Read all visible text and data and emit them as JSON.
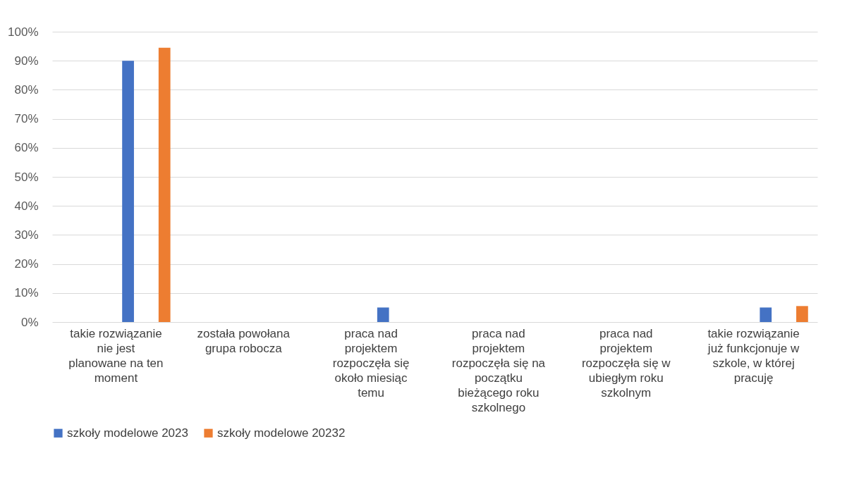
{
  "chart_data": {
    "type": "bar",
    "categories": [
      "takie rozwiązanie nie jest planowane na ten moment",
      "została powołana grupa robocza",
      "praca nad projektem rozpoczęła się około miesiąc temu",
      "praca nad projektem rozpoczęła się na początku bieżącego roku szkolnego",
      "praca nad projektem rozpoczęła się w ubiegłym roku szkolnym",
      "takie rozwiązanie już funkcjonuje w szkole, w której pracuję"
    ],
    "series": [
      {
        "name": "szkoły modelowe 2023",
        "color": "#4472c4",
        "values": [
          90,
          0,
          5,
          0,
          0,
          5
        ]
      },
      {
        "name": "szkoły modelowe 20232",
        "color": "#ed7d31",
        "values": [
          94.5,
          0,
          0,
          0,
          0,
          5.5
        ]
      }
    ],
    "ylim": [
      0,
      100
    ],
    "yticks": [
      {
        "value": 0,
        "label": "0%"
      },
      {
        "value": 10,
        "label": "10%"
      },
      {
        "value": 20,
        "label": "20%"
      },
      {
        "value": 30,
        "label": "30%"
      },
      {
        "value": 40,
        "label": "40%"
      },
      {
        "value": 50,
        "label": "50%"
      },
      {
        "value": 60,
        "label": "60%"
      },
      {
        "value": 70,
        "label": "70%"
      },
      {
        "value": 80,
        "label": "80%"
      },
      {
        "value": 90,
        "label": "90%"
      },
      {
        "value": 100,
        "label": "100%"
      }
    ],
    "grid": "y",
    "legend": "bottom"
  }
}
